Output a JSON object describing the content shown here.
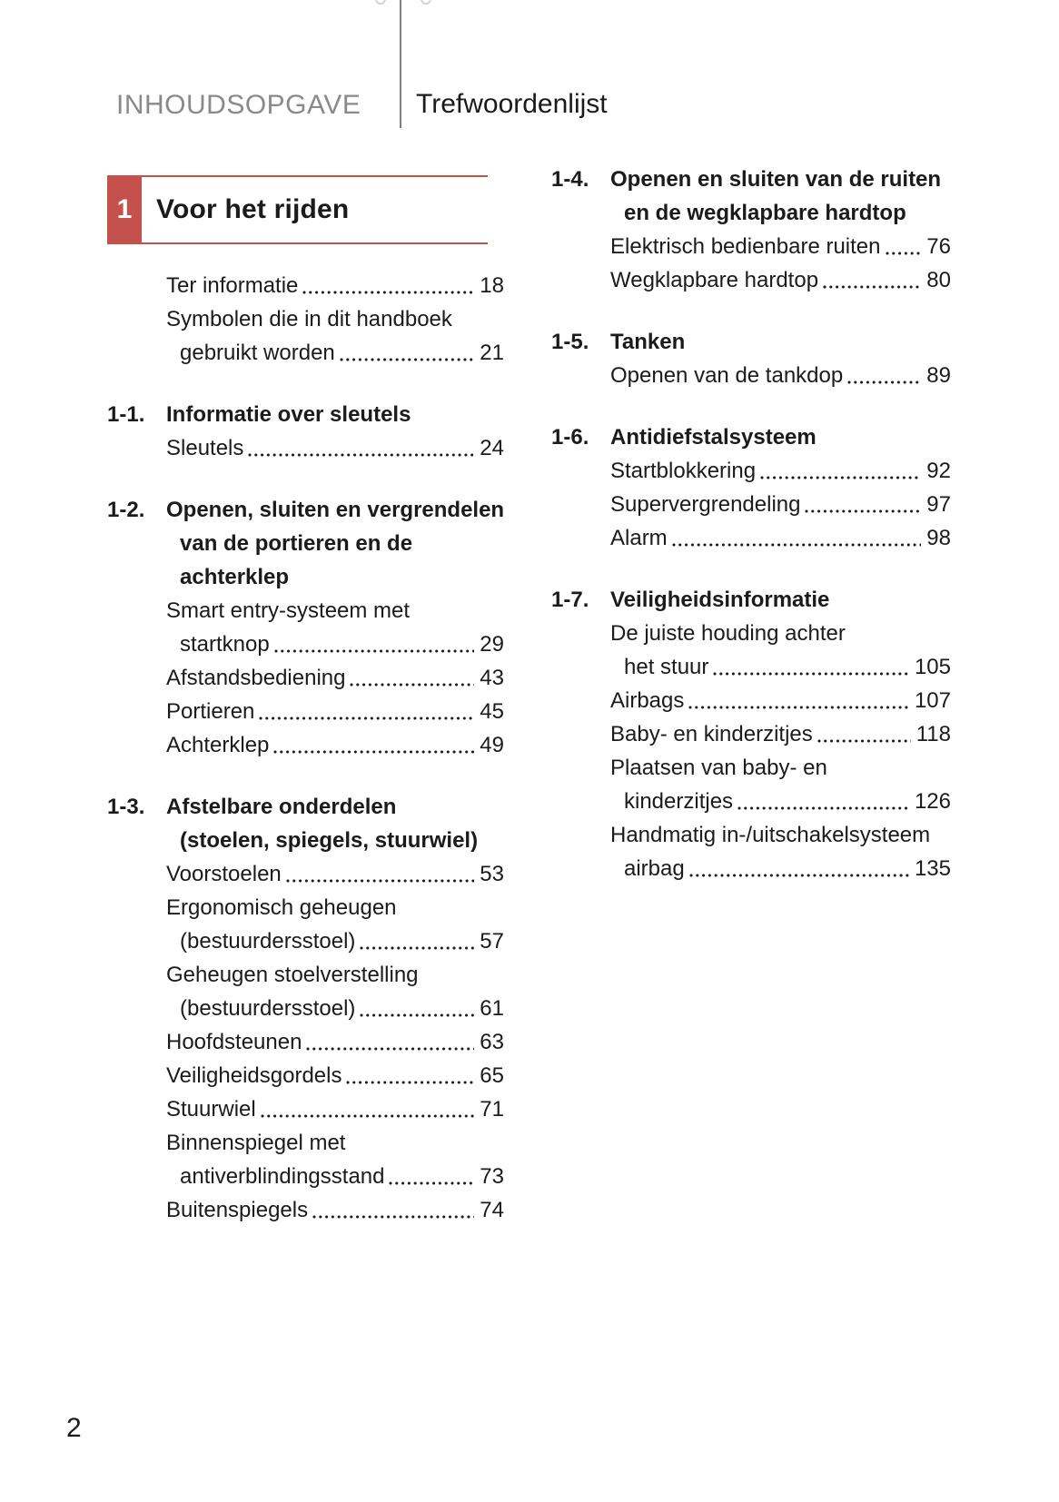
{
  "colors": {
    "accent": "#c5514d",
    "header_muted": "#8a8a8a",
    "ink": "#1b1b1b"
  },
  "header": {
    "left_title": "INHOUDSOPGAVE",
    "right_title": "Trefwoordenlijst"
  },
  "chapter_banner": {
    "number": "1",
    "title": "Voor het rijden"
  },
  "page_number": "2",
  "columns": {
    "left": [
      {
        "type": "entry",
        "lines": [
          "Ter informatie"
        ],
        "page": "18"
      },
      {
        "type": "entry",
        "lines": [
          "Symbolen die in dit handboek",
          "gebruikt worden"
        ],
        "page": "21"
      },
      {
        "type": "section",
        "number": "1-1.",
        "title_lines": [
          "Informatie over sleutels"
        ]
      },
      {
        "type": "entry",
        "lines": [
          "Sleutels"
        ],
        "page": "24"
      },
      {
        "type": "section",
        "number": "1-2.",
        "title_lines": [
          "Openen, sluiten en vergrendelen",
          "van de portieren en de",
          "achterklep"
        ]
      },
      {
        "type": "entry",
        "lines": [
          "Smart entry-systeem met",
          "startknop"
        ],
        "page": "29"
      },
      {
        "type": "entry",
        "lines": [
          "Afstandsbediening"
        ],
        "page": "43"
      },
      {
        "type": "entry",
        "lines": [
          "Portieren"
        ],
        "page": "45"
      },
      {
        "type": "entry",
        "lines": [
          "Achterklep"
        ],
        "page": "49"
      },
      {
        "type": "section",
        "number": "1-3.",
        "title_lines": [
          "Afstelbare onderdelen",
          "(stoelen, spiegels, stuurwiel)"
        ]
      },
      {
        "type": "entry",
        "lines": [
          "Voorstoelen"
        ],
        "page": "53"
      },
      {
        "type": "entry",
        "lines": [
          "Ergonomisch geheugen",
          "(bestuurdersstoel)"
        ],
        "page": "57"
      },
      {
        "type": "entry",
        "lines": [
          "Geheugen stoelverstelling",
          "(bestuurdersstoel)"
        ],
        "page": "61"
      },
      {
        "type": "entry",
        "lines": [
          "Hoofdsteunen"
        ],
        "page": "63"
      },
      {
        "type": "entry",
        "lines": [
          "Veiligheidsgordels"
        ],
        "page": "65"
      },
      {
        "type": "entry",
        "lines": [
          "Stuurwiel"
        ],
        "page": "71"
      },
      {
        "type": "entry",
        "lines": [
          "Binnenspiegel met",
          "antiverblindingsstand"
        ],
        "page": "73"
      },
      {
        "type": "entry",
        "lines": [
          "Buitenspiegels"
        ],
        "page": "74"
      }
    ],
    "right": [
      {
        "type": "section",
        "number": "1-4.",
        "title_lines": [
          "Openen en sluiten van de ruiten",
          "en de wegklapbare hardtop"
        ]
      },
      {
        "type": "entry",
        "lines": [
          "Elektrisch bedienbare ruiten"
        ],
        "page": "76"
      },
      {
        "type": "entry",
        "lines": [
          "Wegklapbare hardtop"
        ],
        "page": "80"
      },
      {
        "type": "section",
        "number": "1-5.",
        "title_lines": [
          "Tanken"
        ]
      },
      {
        "type": "entry",
        "lines": [
          "Openen van de tankdop"
        ],
        "page": "89"
      },
      {
        "type": "section",
        "number": "1-6.",
        "title_lines": [
          "Antidiefstalsysteem"
        ]
      },
      {
        "type": "entry",
        "lines": [
          "Startblokkering"
        ],
        "page": "92"
      },
      {
        "type": "entry",
        "lines": [
          "Supervergrendeling"
        ],
        "page": "97"
      },
      {
        "type": "entry",
        "lines": [
          "Alarm"
        ],
        "page": "98"
      },
      {
        "type": "section",
        "number": "1-7.",
        "title_lines": [
          "Veiligheidsinformatie"
        ]
      },
      {
        "type": "entry",
        "lines": [
          "De juiste houding achter",
          "het stuur"
        ],
        "page": "105"
      },
      {
        "type": "entry",
        "lines": [
          "Airbags"
        ],
        "page": "107"
      },
      {
        "type": "entry",
        "lines": [
          "Baby- en kinderzitjes"
        ],
        "page": "118"
      },
      {
        "type": "entry",
        "lines": [
          "Plaatsen van baby- en",
          "kinderzitjes"
        ],
        "page": "126"
      },
      {
        "type": "entry",
        "lines": [
          "Handmatig in-/uitschakelsysteem",
          "airbag"
        ],
        "page": "135"
      }
    ]
  }
}
